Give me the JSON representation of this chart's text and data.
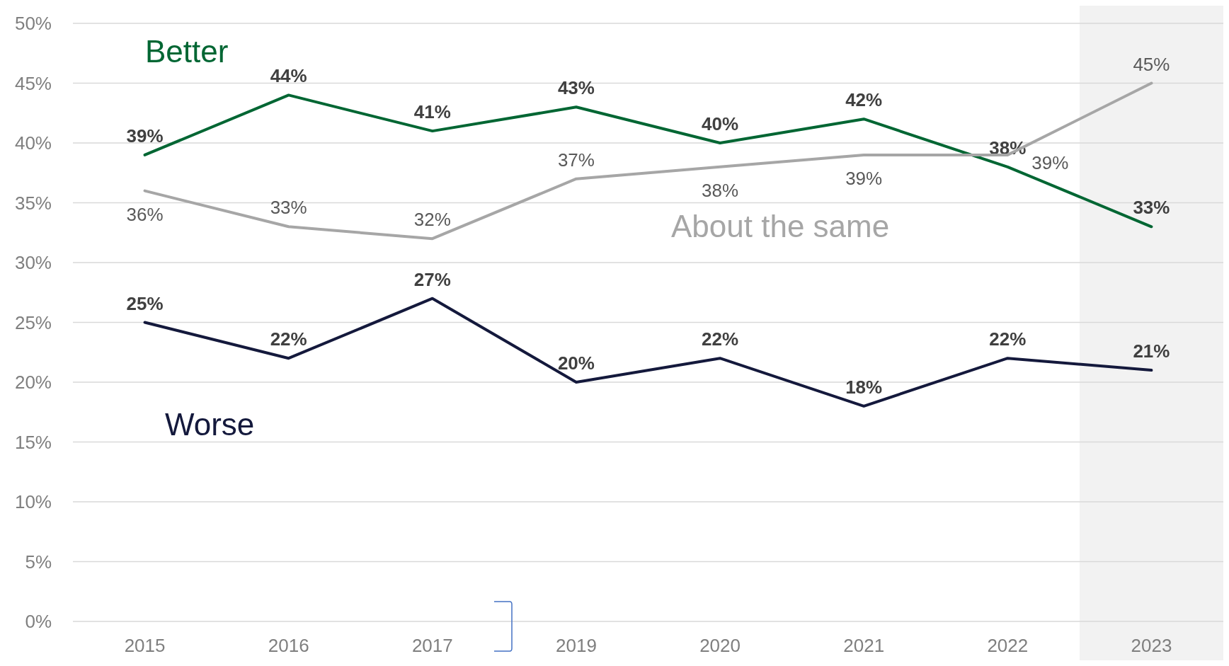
{
  "chart_data": {
    "type": "line",
    "categories": [
      "2015",
      "2016",
      "2017",
      "2019",
      "2020",
      "2021",
      "2022",
      "2023"
    ],
    "series": [
      {
        "name": "Better",
        "color": "#006633",
        "values": [
          39,
          44,
          41,
          43,
          40,
          42,
          38,
          33
        ],
        "value_labels": [
          "39%",
          "44%",
          "41%",
          "43%",
          "40%",
          "42%",
          "38%",
          "33%"
        ]
      },
      {
        "name": "About the same",
        "color": "#a6a6a6",
        "values": [
          36,
          33,
          32,
          37,
          38,
          39,
          39,
          45
        ],
        "value_labels": [
          "36%",
          "33%",
          "32%",
          "37%",
          "38%",
          "39%",
          "39%",
          "45%"
        ]
      },
      {
        "name": "Worse",
        "color": "#14193c",
        "values": [
          25,
          22,
          27,
          20,
          22,
          18,
          22,
          21
        ],
        "value_labels": [
          "25%",
          "22%",
          "27%",
          "20%",
          "22%",
          "18%",
          "22%",
          "21%"
        ]
      }
    ],
    "ylim": [
      0,
      50
    ],
    "yticks": [
      {
        "value": 0,
        "label": "0%"
      },
      {
        "value": 5,
        "label": "5%"
      },
      {
        "value": 10,
        "label": "10%"
      },
      {
        "value": 15,
        "label": "15%"
      },
      {
        "value": 20,
        "label": "20%"
      },
      {
        "value": 25,
        "label": "25%"
      },
      {
        "value": 30,
        "label": "30%"
      },
      {
        "value": 35,
        "label": "35%"
      },
      {
        "value": 40,
        "label": "40%"
      },
      {
        "value": 45,
        "label": "45%"
      },
      {
        "value": 50,
        "label": "50%"
      }
    ],
    "grid": "y",
    "legend": false,
    "marker": "none",
    "line_style": "solid",
    "bands": [
      {
        "axis": "x",
        "from": "2023",
        "to": "2023",
        "color": "#f2f2f2"
      }
    ]
  }
}
